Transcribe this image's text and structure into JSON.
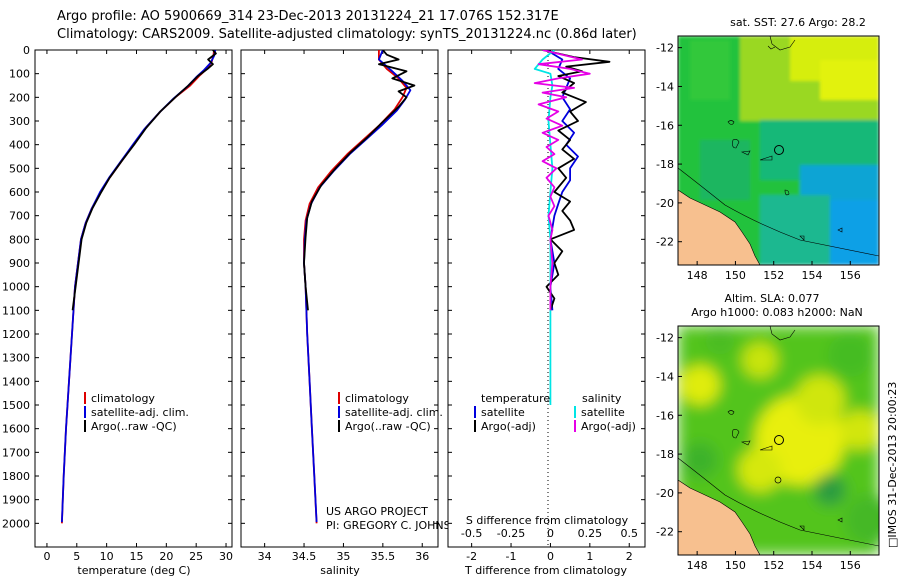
{
  "header": {
    "line1": "Argo profile: AO 5900669_314 23-Dec-2013 20131224_21 17.076S 152.317E",
    "line2": "Climatology: CARS2009. Satellite-adjusted climatology: synTS_20131224.nc (0.86d later)"
  },
  "side_label": "□IMOS 31-Dec-2013 20:00:23",
  "project": {
    "line1": "US ARGO PROJECT",
    "line2": "PI: GREGORY C. JOHNSON"
  },
  "colors": {
    "climatology": "#dd0000",
    "satellite": "#0000dd",
    "argo": "#000000",
    "sal_satellite": "#00e5e5",
    "sal_argo": "#e600e6"
  },
  "chart_data": [
    {
      "type": "line",
      "title": "temperature profile",
      "xlabel": "temperature (deg C)",
      "ylabel": "depth",
      "xlim": [
        -2,
        31
      ],
      "ylim": [
        2100,
        0
      ],
      "xticks": [
        0,
        5,
        10,
        15,
        20,
        25,
        30
      ],
      "yticks": [
        0,
        100,
        200,
        300,
        400,
        500,
        600,
        700,
        800,
        900,
        1000,
        1100,
        1200,
        1300,
        1400,
        1500,
        1600,
        1700,
        1800,
        1900,
        2000
      ],
      "legend": [
        "climatology",
        "satellite-adj. clim.",
        "Argo(..raw -QC)"
      ],
      "series": [
        {
          "name": "climatology",
          "color": "#dd0000",
          "points": [
            [
              28.0,
              0
            ],
            [
              27.9,
              20
            ],
            [
              27.6,
              50
            ],
            [
              26.8,
              80
            ],
            [
              25.5,
              110
            ],
            [
              24.0,
              150
            ],
            [
              21.5,
              200
            ],
            [
              19.0,
              260
            ],
            [
              16.5,
              330
            ],
            [
              14.5,
              400
            ],
            [
              12.5,
              470
            ],
            [
              10.5,
              540
            ],
            [
              9.0,
              600
            ],
            [
              7.5,
              670
            ],
            [
              6.5,
              730
            ],
            [
              5.7,
              800
            ],
            [
              5.2,
              900
            ],
            [
              4.7,
              1000
            ],
            [
              4.2,
              1200
            ],
            [
              3.7,
              1400
            ],
            [
              3.2,
              1600
            ],
            [
              2.8,
              1800
            ],
            [
              2.5,
              2000
            ]
          ]
        },
        {
          "name": "satellite-adj. clim.",
          "color": "#0000dd",
          "points": [
            [
              28.2,
              0
            ],
            [
              28.0,
              25
            ],
            [
              27.4,
              55
            ],
            [
              26.3,
              85
            ],
            [
              25.0,
              115
            ],
            [
              23.5,
              155
            ],
            [
              21.2,
              205
            ],
            [
              18.8,
              265
            ],
            [
              16.3,
              335
            ],
            [
              14.4,
              400
            ],
            [
              12.4,
              470
            ],
            [
              10.4,
              540
            ],
            [
              8.9,
              600
            ],
            [
              7.5,
              670
            ],
            [
              6.5,
              730
            ],
            [
              5.7,
              800
            ],
            [
              5.2,
              900
            ],
            [
              4.7,
              1000
            ],
            [
              4.2,
              1200
            ],
            [
              3.7,
              1400
            ],
            [
              3.2,
              1600
            ],
            [
              2.8,
              1800
            ],
            [
              2.5,
              1995
            ]
          ]
        },
        {
          "name": "Argo(..raw -QC)",
          "color": "#000000",
          "points": [
            [
              27.8,
              0
            ],
            [
              28.3,
              15
            ],
            [
              27.0,
              40
            ],
            [
              27.8,
              60
            ],
            [
              26.9,
              80
            ],
            [
              25.3,
              110
            ],
            [
              23.7,
              150
            ],
            [
              21.5,
              200
            ],
            [
              19.0,
              260
            ],
            [
              16.6,
              330
            ],
            [
              14.6,
              400
            ],
            [
              12.5,
              470
            ],
            [
              10.5,
              540
            ],
            [
              9.1,
              600
            ],
            [
              7.6,
              670
            ],
            [
              6.6,
              730
            ],
            [
              5.8,
              800
            ],
            [
              5.3,
              900
            ],
            [
              4.8,
              1000
            ],
            [
              4.3,
              1100
            ]
          ]
        }
      ]
    },
    {
      "type": "line",
      "title": "salinity profile",
      "xlabel": "salinity",
      "xlim": [
        33.7,
        36.2
      ],
      "ylim": [
        2100,
        0
      ],
      "xticks": [
        34,
        34.5,
        35,
        35.5,
        36
      ],
      "legend": [
        "climatology",
        "satellite-adj. clim.",
        "Argo(..raw -QC)"
      ],
      "series": [
        {
          "name": "climatology",
          "color": "#dd0000",
          "points": [
            [
              35.45,
              0
            ],
            [
              35.45,
              40
            ],
            [
              35.55,
              80
            ],
            [
              35.7,
              120
            ],
            [
              35.8,
              160
            ],
            [
              35.75,
              200
            ],
            [
              35.65,
              250
            ],
            [
              35.45,
              320
            ],
            [
              35.25,
              380
            ],
            [
              35.05,
              440
            ],
            [
              34.85,
              510
            ],
            [
              34.68,
              580
            ],
            [
              34.57,
              650
            ],
            [
              34.52,
              720
            ],
            [
              34.5,
              800
            ],
            [
              34.5,
              900
            ],
            [
              34.52,
              1000
            ],
            [
              34.54,
              1200
            ],
            [
              34.57,
              1400
            ],
            [
              34.6,
              1600
            ],
            [
              34.63,
              1800
            ],
            [
              34.66,
              2000
            ]
          ]
        },
        {
          "name": "satellite-adj. clim.",
          "color": "#0000dd",
          "points": [
            [
              35.5,
              0
            ],
            [
              35.45,
              40
            ],
            [
              35.62,
              90
            ],
            [
              35.75,
              130
            ],
            [
              35.85,
              170
            ],
            [
              35.78,
              210
            ],
            [
              35.68,
              255
            ],
            [
              35.48,
              320
            ],
            [
              35.28,
              380
            ],
            [
              35.08,
              440
            ],
            [
              34.88,
              510
            ],
            [
              34.7,
              580
            ],
            [
              34.59,
              650
            ],
            [
              34.53,
              720
            ],
            [
              34.51,
              800
            ],
            [
              34.5,
              900
            ],
            [
              34.52,
              1000
            ],
            [
              34.54,
              1200
            ],
            [
              34.57,
              1400
            ],
            [
              34.6,
              1600
            ],
            [
              34.63,
              1800
            ],
            [
              34.66,
              1995
            ]
          ]
        },
        {
          "name": "Argo(..raw -QC)",
          "color": "#000000",
          "points": [
            [
              35.5,
              0
            ],
            [
              35.55,
              20
            ],
            [
              35.7,
              40
            ],
            [
              35.45,
              60
            ],
            [
              35.8,
              90
            ],
            [
              35.62,
              120
            ],
            [
              35.9,
              150
            ],
            [
              35.7,
              175
            ],
            [
              35.8,
              200
            ],
            [
              35.7,
              240
            ],
            [
              35.48,
              310
            ],
            [
              35.3,
              370
            ],
            [
              35.1,
              430
            ],
            [
              34.9,
              500
            ],
            [
              34.72,
              570
            ],
            [
              34.6,
              640
            ],
            [
              34.54,
              710
            ],
            [
              34.52,
              790
            ],
            [
              34.5,
              900
            ],
            [
              34.52,
              1000
            ],
            [
              34.55,
              1100
            ]
          ]
        }
      ]
    },
    {
      "type": "line",
      "title": "difference from climatology",
      "xlabel_top": "S difference from climatology",
      "xlabel": "T difference from climatology",
      "xlim": [
        -2.6,
        2.4
      ],
      "ylim": [
        2100,
        0
      ],
      "xticks": [
        -2,
        -1,
        0,
        1,
        2
      ],
      "xtick_labels": [
        "-2",
        "-1",
        "0",
        "1",
        "2"
      ],
      "xticks_top": [
        -0.5,
        -0.25,
        0,
        0.25,
        0.5
      ],
      "xtick_labels_top": [
        "-0.5",
        "-0.25",
        "0",
        "0.25",
        "0.5"
      ],
      "legend_titles": [
        "temperature",
        "salinity"
      ],
      "legend": [
        "satellite",
        "Argo(-adj)",
        "satellite",
        "Argo(-adj)"
      ],
      "series": [
        {
          "name": "T satellite",
          "color": "#0000dd",
          "points": [
            [
              -0.1,
              0
            ],
            [
              0.3,
              40
            ],
            [
              0.2,
              80
            ],
            [
              0.5,
              120
            ],
            [
              0.4,
              160
            ],
            [
              0.3,
              200
            ],
            [
              0.5,
              250
            ],
            [
              0.3,
              300
            ],
            [
              0.6,
              350
            ],
            [
              0.4,
              400
            ],
            [
              0.7,
              450
            ],
            [
              0.5,
              500
            ],
            [
              0.5,
              550
            ],
            [
              0.3,
              600
            ],
            [
              0.2,
              650
            ],
            [
              0.1,
              700
            ],
            [
              0.0,
              800
            ],
            [
              0.1,
              900
            ],
            [
              0.0,
              1000
            ],
            [
              0.05,
              1100
            ]
          ]
        },
        {
          "name": "T Argo(-adj)",
          "color": "#000000",
          "points": [
            [
              -0.2,
              0
            ],
            [
              0.6,
              30
            ],
            [
              1.5,
              50
            ],
            [
              0.4,
              70
            ],
            [
              0.8,
              90
            ],
            [
              0.2,
              110
            ],
            [
              0.6,
              140
            ],
            [
              0.3,
              180
            ],
            [
              0.9,
              220
            ],
            [
              0.5,
              260
            ],
            [
              0.7,
              300
            ],
            [
              0.2,
              340
            ],
            [
              0.5,
              380
            ],
            [
              0.3,
              420
            ],
            [
              0.6,
              460
            ],
            [
              0.2,
              500
            ],
            [
              0.4,
              540
            ],
            [
              0.1,
              600
            ],
            [
              0.5,
              640
            ],
            [
              0.3,
              680
            ],
            [
              0.5,
              720
            ],
            [
              0.6,
              760
            ],
            [
              0.0,
              800
            ],
            [
              0.3,
              850
            ],
            [
              0.1,
              900
            ],
            [
              0.2,
              950
            ],
            [
              -0.1,
              1000
            ],
            [
              0.1,
              1050
            ],
            [
              0.0,
              1100
            ]
          ]
        },
        {
          "name": "S satellite",
          "color": "#00e5e5",
          "points": [
            [
              0.1,
              0
            ],
            [
              -0.2,
              40
            ],
            [
              -0.4,
              80
            ],
            [
              0.0,
              100
            ],
            [
              0.05,
              150
            ],
            [
              0.0,
              200
            ],
            [
              -0.05,
              300
            ],
            [
              0.0,
              400
            ],
            [
              0.05,
              500
            ],
            [
              0.0,
              600
            ],
            [
              -0.05,
              700
            ],
            [
              0.0,
              800
            ],
            [
              0.0,
              1000
            ],
            [
              0.0,
              1200
            ],
            [
              0.0,
              1400
            ],
            [
              0.0,
              1500
            ]
          ]
        },
        {
          "name": "S Argo(-adj)",
          "color": "#e600e6",
          "points": [
            [
              -0.2,
              0
            ],
            [
              0.3,
              20
            ],
            [
              0.8,
              40
            ],
            [
              -0.3,
              60
            ],
            [
              0.5,
              80
            ],
            [
              1.0,
              100
            ],
            [
              0.2,
              120
            ],
            [
              -0.4,
              140
            ],
            [
              0.6,
              160
            ],
            [
              -0.2,
              180
            ],
            [
              0.4,
              200
            ],
            [
              -0.3,
              230
            ],
            [
              0.2,
              260
            ],
            [
              -0.1,
              290
            ],
            [
              0.3,
              320
            ],
            [
              -0.2,
              350
            ],
            [
              0.2,
              380
            ],
            [
              -0.1,
              410
            ],
            [
              0.1,
              440
            ],
            [
              -0.2,
              470
            ],
            [
              0.15,
              500
            ],
            [
              -0.1,
              540
            ],
            [
              0.1,
              580
            ],
            [
              0.0,
              620
            ],
            [
              0.1,
              660
            ],
            [
              -0.05,
              700
            ],
            [
              0.05,
              760
            ],
            [
              0.0,
              800
            ],
            [
              0.05,
              900
            ],
            [
              0.0,
              1000
            ],
            [
              0.0,
              1100
            ]
          ]
        }
      ]
    },
    {
      "type": "heatmap",
      "title": "sat. SST: 27.6 Argo: 28.2",
      "xlim": [
        147,
        157.5
      ],
      "ylim": [
        -23.2,
        -11.4
      ],
      "xticks": [
        148,
        150,
        152,
        154,
        156
      ],
      "yticks": [
        -12,
        -14,
        -16,
        -18,
        -20,
        -22
      ],
      "argo_position": [
        152.317,
        -17.076
      ]
    },
    {
      "type": "heatmap",
      "title": "Altim. SLA: 0.077",
      "subtitle": "Argo h1000: 0.083 h2000: NaN",
      "xlim": [
        147,
        157.5
      ],
      "ylim": [
        -23.2,
        -11.4
      ],
      "xticks": [
        148,
        150,
        152,
        154,
        156
      ],
      "yticks": [
        -12,
        -14,
        -16,
        -18,
        -20,
        -22
      ],
      "argo_position": [
        152.317,
        -17.076
      ]
    }
  ]
}
